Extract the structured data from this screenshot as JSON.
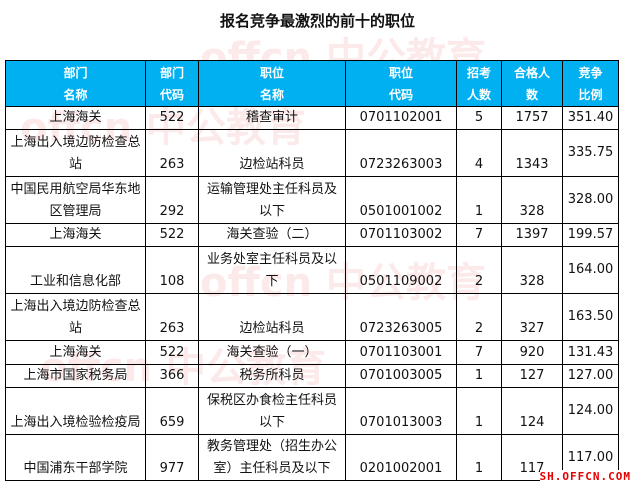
{
  "title": "报名竞争最激烈的前十的职位",
  "headers": [
    [
      "部门",
      "名称"
    ],
    [
      "部门",
      "代码"
    ],
    [
      "职位",
      "名称"
    ],
    [
      "职位",
      "代码"
    ],
    [
      "招考",
      "人数"
    ],
    [
      "合格人",
      "数"
    ],
    [
      "竞争",
      "比例"
    ]
  ],
  "rows": [
    [
      "上海海关",
      "522",
      "稽查审计",
      "0701102001",
      "5",
      "1757",
      "351.40"
    ],
    [
      "上海出入境边防检查总站",
      "263",
      "边检站科员",
      "0723263003",
      "4",
      "1343",
      "335.75"
    ],
    [
      "中国民用航空局华东地区管理局",
      "292",
      "运输管理处主任科员及以下",
      "0501001002",
      "1",
      "328",
      "328.00"
    ],
    [
      "上海海关",
      "522",
      "海关查验（二）",
      "0701103002",
      "7",
      "1397",
      "199.57"
    ],
    [
      "工业和信息化部",
      "108",
      "业务处室主任科员及以下",
      "0501109002",
      "2",
      "328",
      "164.00"
    ],
    [
      "上海出入境边防检查总站",
      "263",
      "边检站科员",
      "0723263005",
      "2",
      "327",
      "163.50"
    ],
    [
      "上海海关",
      "522",
      "海关查验（一）",
      "0701103001",
      "7",
      "920",
      "131.43"
    ],
    [
      "上海市国家税务局",
      "366",
      "税务所科员",
      "0701003005",
      "1",
      "127",
      "127.00"
    ],
    [
      "上海出入境检验检疫局",
      "659",
      "保税区办食检主任科员以下",
      "0701013003",
      "1",
      "124",
      "124.00"
    ],
    [
      "中国浦东干部学院",
      "977",
      "教务管理处（招生办公室）主任科员及以下",
      "0201002001",
      "1",
      "117",
      "117.00"
    ]
  ],
  "watermark": "offcn 中公教育",
  "site": "SH.OFFCN.COM",
  "colors": {
    "header_bg": "#00b0f0",
    "header_text": "#ffffff"
  }
}
